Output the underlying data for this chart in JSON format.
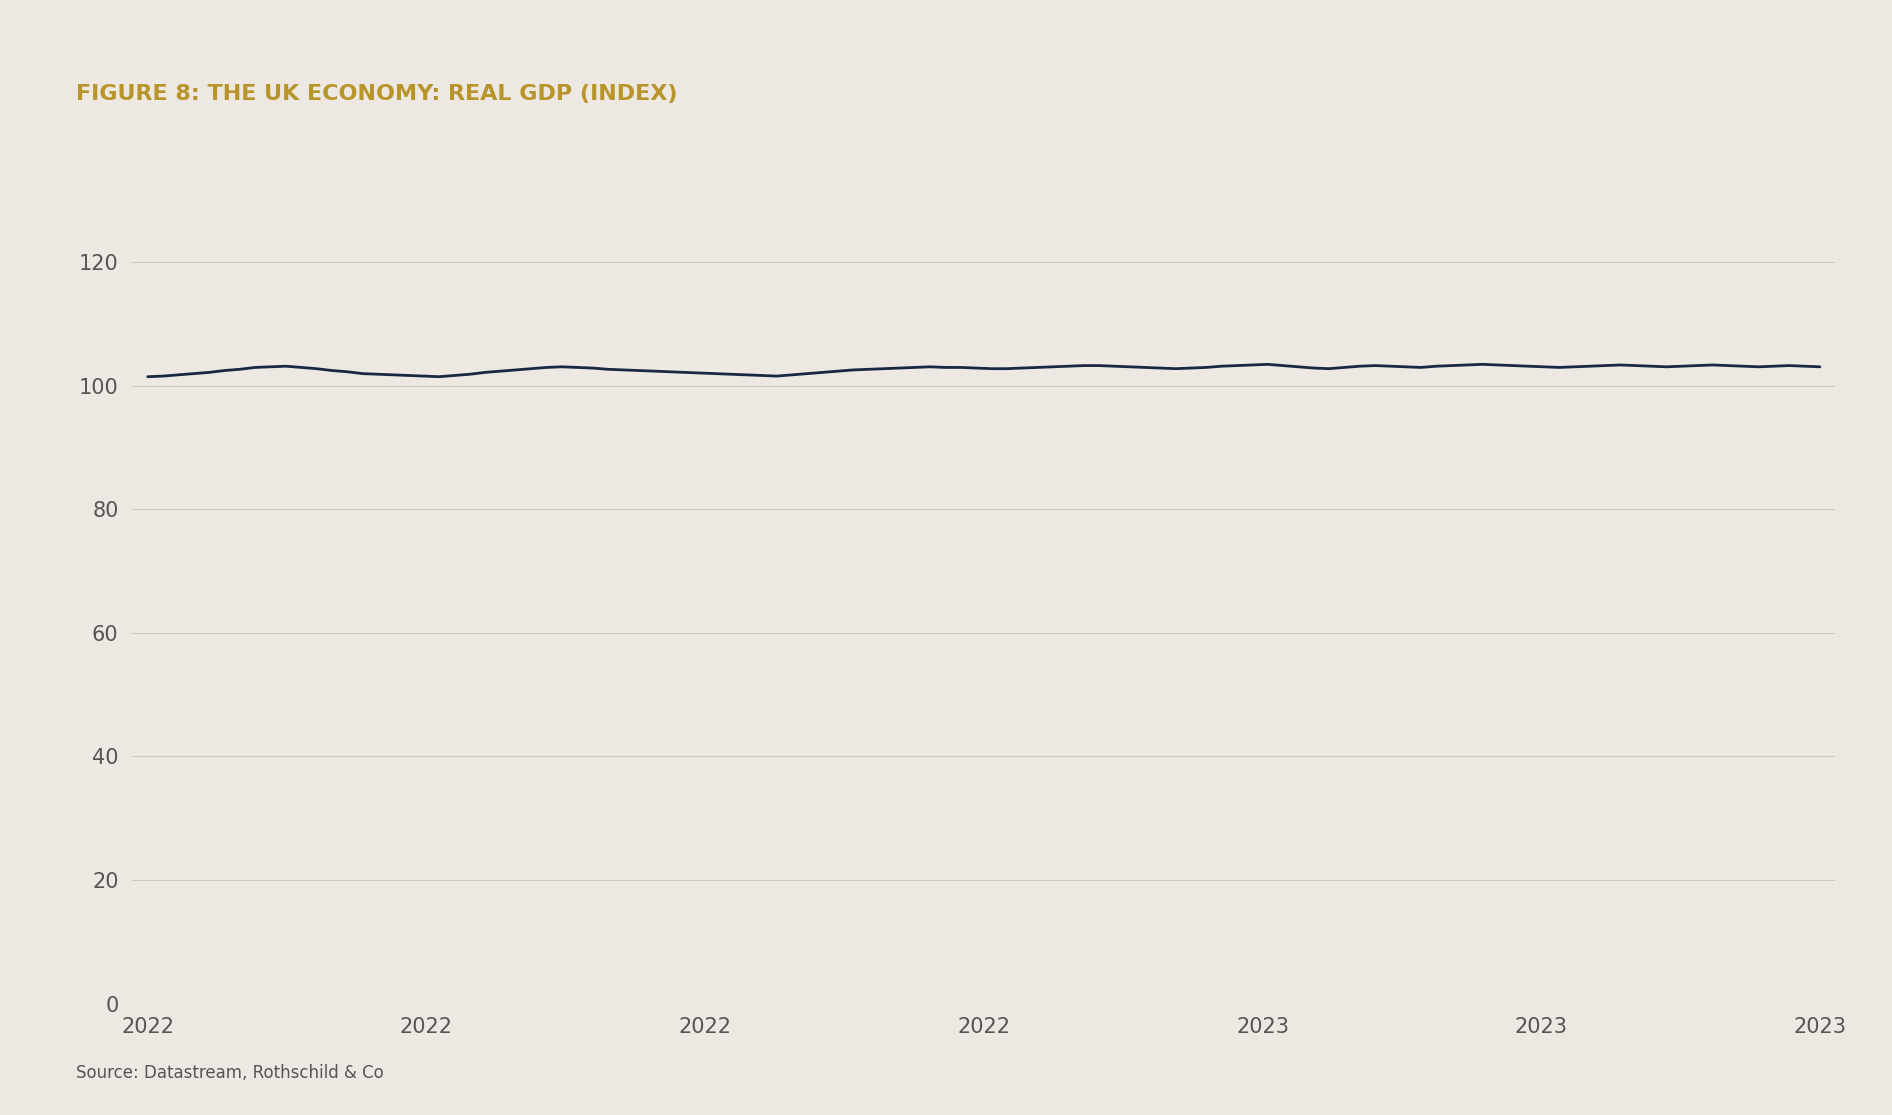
{
  "title": "FIGURE 8: THE UK ECONOMY: REAL GDP (INDEX)",
  "title_color": "#b8952a",
  "background_color": "#ede9e2",
  "line_color": "#1a2744",
  "line_width": 2.0,
  "source_text": "Source: Datastream, Rothschild & Co",
  "yticks": [
    0,
    20,
    40,
    60,
    80,
    100,
    120
  ],
  "ylim": [
    0,
    130
  ],
  "xtick_labels": [
    "2022",
    "2022",
    "2022",
    "2022",
    "2023",
    "2023",
    "2023"
  ],
  "grid_color": "#cdc8c0",
  "gdp_values": [
    101.5,
    101.6,
    101.8,
    102.0,
    102.2,
    102.5,
    102.7,
    103.0,
    103.1,
    103.2,
    103.0,
    102.8,
    102.5,
    102.3,
    102.0,
    101.9,
    101.8,
    101.7,
    101.6,
    101.5,
    101.7,
    101.9,
    102.2,
    102.4,
    102.6,
    102.8,
    103.0,
    103.1,
    103.0,
    102.9,
    102.7,
    102.6,
    102.5,
    102.4,
    102.3,
    102.2,
    102.1,
    102.0,
    101.9,
    101.8,
    101.7,
    101.6,
    101.8,
    102.0,
    102.2,
    102.4,
    102.6,
    102.7,
    102.8,
    102.9,
    103.0,
    103.1,
    103.0,
    103.0,
    102.9,
    102.8,
    102.8,
    102.9,
    103.0,
    103.1,
    103.2,
    103.3,
    103.3,
    103.2,
    103.1,
    103.0,
    102.9,
    102.8,
    102.9,
    103.0,
    103.2,
    103.3,
    103.4,
    103.5,
    103.3,
    103.1,
    102.9,
    102.8,
    103.0,
    103.2,
    103.3,
    103.2,
    103.1,
    103.0,
    103.2,
    103.3,
    103.4,
    103.5,
    103.4,
    103.3,
    103.2,
    103.1,
    103.0,
    103.1,
    103.2,
    103.3,
    103.4,
    103.3,
    103.2,
    103.1,
    103.2,
    103.3,
    103.4,
    103.3,
    103.2,
    103.1,
    103.2,
    103.3,
    103.2,
    103.1
  ]
}
